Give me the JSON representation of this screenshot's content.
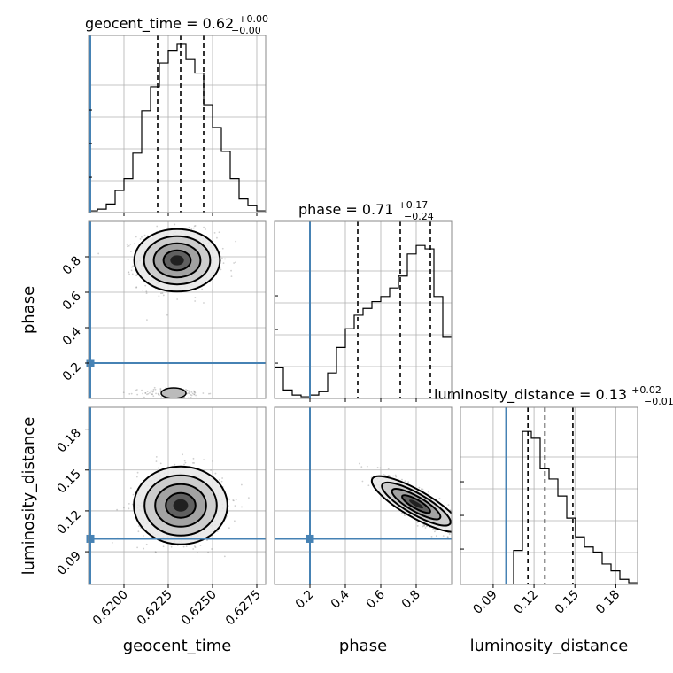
{
  "chart_data": {
    "type": "corner",
    "parameters": [
      "geocent_time",
      "phase",
      "luminosity_distance"
    ],
    "colors": {
      "truth": "#4682b4",
      "hist": "#000000",
      "grid": "#b0b0b0"
    },
    "grid": true,
    "diagonal": [
      {
        "name": "geocent_time",
        "title_prefix": "geocent_time = 0.62",
        "title_sup": "+0.00",
        "title_sub": "−0.00",
        "xlabel": "geocent_time",
        "range": [
          0.618,
          0.628
        ],
        "ticks": [
          0.62,
          0.6225,
          0.625,
          0.6275
        ],
        "tick_labels": [
          "0.6200",
          "0.6225",
          "0.6250",
          "0.6275"
        ],
        "quantiles": [
          0.6219,
          0.6232,
          0.6245
        ],
        "truth": 0.6181,
        "hist_edges": [
          0.618,
          0.6185,
          0.619,
          0.6195,
          0.62,
          0.6205,
          0.621,
          0.6215,
          0.622,
          0.6225,
          0.623,
          0.6235,
          0.624,
          0.6245,
          0.625,
          0.6255,
          0.626,
          0.6265,
          0.627,
          0.6275,
          0.628
        ],
        "hist_values": [
          0.01,
          0.02,
          0.05,
          0.13,
          0.2,
          0.35,
          0.6,
          0.74,
          0.88,
          0.95,
          0.99,
          0.9,
          0.82,
          0.63,
          0.5,
          0.36,
          0.2,
          0.08,
          0.04,
          0.01
        ]
      },
      {
        "name": "phase",
        "title_prefix": "phase = 0.71",
        "title_sup": "+0.17",
        "title_sub": "−0.24",
        "xlabel": "phase",
        "range": [
          0.0,
          1.0
        ],
        "ticks": [
          0.2,
          0.4,
          0.6,
          0.8
        ],
        "tick_labels": [
          "0.2",
          "0.4",
          "0.6",
          "0.8"
        ],
        "quantiles": [
          0.47,
          0.71,
          0.88
        ],
        "truth": 0.2,
        "hist_edges": [
          0.0,
          0.05,
          0.1,
          0.15,
          0.2,
          0.25,
          0.3,
          0.35,
          0.4,
          0.45,
          0.5,
          0.55,
          0.6,
          0.65,
          0.7,
          0.75,
          0.8,
          0.85,
          0.9,
          0.95,
          1.0
        ],
        "hist_values": [
          0.18,
          0.05,
          0.02,
          0.01,
          0.02,
          0.04,
          0.15,
          0.3,
          0.41,
          0.49,
          0.53,
          0.57,
          0.6,
          0.65,
          0.72,
          0.85,
          0.9,
          0.88,
          0.6,
          0.36
        ]
      },
      {
        "name": "luminosity_distance",
        "title_prefix": "luminosity_distance = 0.13",
        "title_sup": "+0.02",
        "title_sub": "−0.01",
        "xlabel": "luminosity_distance",
        "range": [
          0.066,
          0.196
        ],
        "ticks": [
          0.09,
          0.12,
          0.15,
          0.18
        ],
        "tick_labels": [
          "0.09",
          "0.12",
          "0.15",
          "0.18"
        ],
        "quantiles": [
          0.1155,
          0.128,
          0.1485
        ],
        "truth": 0.0995,
        "hist_edges": [
          0.066,
          0.0725,
          0.079,
          0.0855,
          0.092,
          0.0985,
          0.105,
          0.1115,
          0.118,
          0.1245,
          0.131,
          0.1375,
          0.144,
          0.1505,
          0.157,
          0.1635,
          0.17,
          0.1765,
          0.183,
          0.1895,
          0.196
        ],
        "hist_values": [
          0.0,
          0.0,
          0.0,
          0.0,
          0.0,
          0.0,
          0.2,
          0.9,
          0.86,
          0.68,
          0.62,
          0.52,
          0.39,
          0.28,
          0.22,
          0.19,
          0.12,
          0.08,
          0.03,
          0.01
        ]
      }
    ],
    "ylabels": {
      "phase": "phase",
      "luminosity_distance": "luminosity_distance"
    },
    "y_ticks": {
      "phase": [
        0.2,
        0.4,
        0.6,
        0.8
      ],
      "phase_labels": [
        "0.2",
        "0.4",
        "0.6",
        "0.8"
      ],
      "luminosity_distance": [
        0.09,
        0.12,
        0.15,
        0.18
      ],
      "luminosity_distance_labels": [
        "0.09",
        "0.12",
        "0.15",
        "0.18"
      ]
    },
    "pairs": [
      {
        "x": "geocent_time",
        "y": "phase",
        "center": [
          0.623,
          0.78
        ],
        "spread": [
          0.0011,
          0.08
        ],
        "secondary": {
          "center": [
            0.6228,
            0.03
          ],
          "spread": [
            0.0009,
            0.015
          ]
        }
      },
      {
        "x": "geocent_time",
        "y": "luminosity_distance",
        "center": [
          0.6232,
          0.124
        ],
        "spread": [
          0.0012,
          0.013
        ]
      },
      {
        "x": "phase",
        "y": "luminosity_distance",
        "center": [
          0.8,
          0.125
        ],
        "spread": [
          0.1,
          0.01
        ],
        "correlation": -0.85
      }
    ],
    "truth_points": {
      "geocent_time": 0.6181,
      "phase": 0.2,
      "luminosity_distance": 0.0995
    }
  }
}
